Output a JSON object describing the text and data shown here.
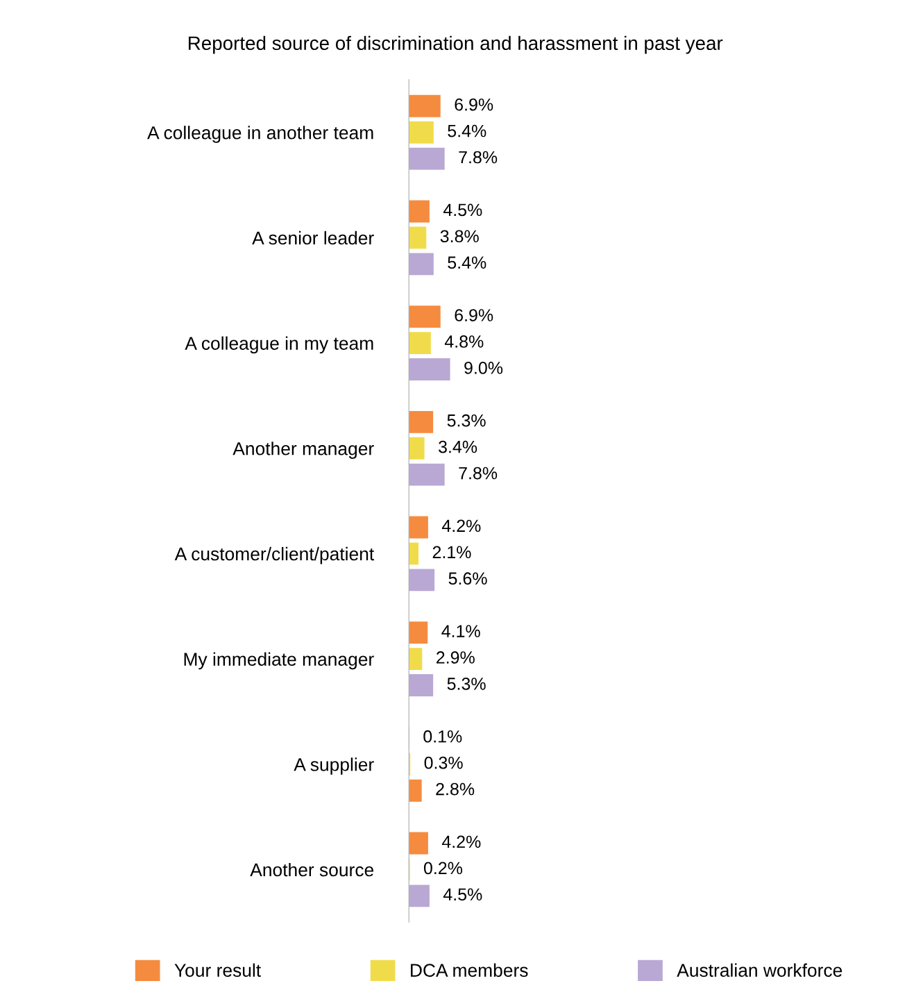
{
  "chart_data": {
    "type": "bar",
    "orientation": "horizontal",
    "title": "Reported source of discrimination and harassment in past year",
    "categories": [
      "A colleague in another team",
      "A senior leader",
      "A colleague in my team",
      "Another manager",
      "A customer/client/patient",
      "My immediate manager",
      "A supplier",
      "Another source"
    ],
    "series": [
      {
        "name": "Your result",
        "color": "#f58b3f",
        "values": [
          6.9,
          4.5,
          6.9,
          5.3,
          4.2,
          4.1,
          0.1,
          4.2
        ],
        "value_labels": [
          "6.9%",
          "4.5%",
          "6.9%",
          "5.3%",
          "4.2%",
          "4.1%",
          "0.1%",
          "4.2%"
        ]
      },
      {
        "name": "DCA members",
        "color": "#f0dc4a",
        "values": [
          5.4,
          3.8,
          4.8,
          3.4,
          2.1,
          2.9,
          0.3,
          0.2
        ],
        "value_labels": [
          "5.4%",
          "3.8%",
          "4.8%",
          "3.4%",
          "2.1%",
          "2.9%",
          "0.3%",
          "0.2%"
        ]
      },
      {
        "name": "Australian workforce",
        "color": "#b9a8d4",
        "colors": [
          "#b9a8d4",
          "#b9a8d4",
          "#b9a8d4",
          "#b9a8d4",
          "#b9a8d4",
          "#b9a8d4",
          "#f58b3f",
          "#b9a8d4"
        ],
        "values": [
          7.8,
          5.4,
          9.0,
          7.8,
          5.6,
          5.3,
          2.8,
          4.5
        ],
        "value_labels": [
          "7.8%",
          "5.4%",
          "9.0%",
          "7.8%",
          "5.6%",
          "5.3%",
          "2.8%",
          "4.5%"
        ]
      }
    ],
    "tick_labels": "y",
    "grid": false,
    "legend": "bottom"
  }
}
